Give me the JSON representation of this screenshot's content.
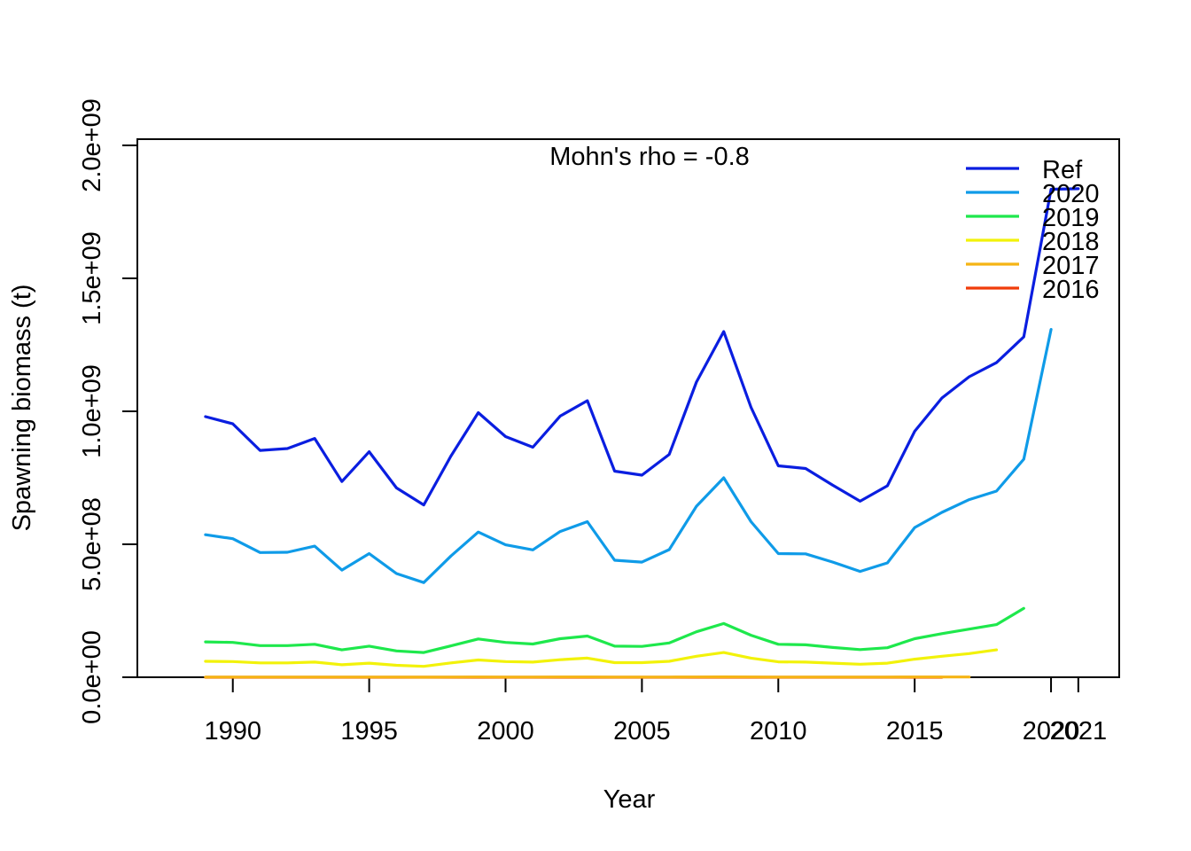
{
  "chart_data": {
    "type": "line",
    "annotation": "Mohn's rho = -0.8",
    "xlabel": "Year",
    "ylabel": "Spawning biomass (t)",
    "xlim": [
      1986.5,
      2022.5
    ],
    "ylim": [
      0,
      2000000000
    ],
    "x_ticks": [
      1990,
      1995,
      2000,
      2005,
      2010,
      2015,
      2020,
      2021
    ],
    "x_tick_labels": [
      "1990",
      "1995",
      "2000",
      "2005",
      "2010",
      "2015",
      "2020",
      "2021"
    ],
    "y_ticks": [
      0,
      500000000,
      1000000000,
      1500000000,
      2000000000
    ],
    "y_tick_labels": [
      "0.0e+00",
      "5.0e+08",
      "1.0e+09",
      "1.5e+09",
      "2.0e+09"
    ],
    "legend_position": "top-right",
    "series": [
      {
        "name": "Ref",
        "color": "#0a1ee0",
        "x": [
          1989,
          1990,
          1991,
          1992,
          1993,
          1994,
          1995,
          1996,
          1997,
          1998,
          1999,
          2000,
          2001,
          2002,
          2003,
          2004,
          2005,
          2006,
          2007,
          2008,
          2009,
          2010,
          2011,
          2012,
          2013,
          2014,
          2015,
          2016,
          2017,
          2018,
          2019,
          2020,
          2021
        ],
        "values": [
          980000000,
          953000000,
          853000000,
          860000000,
          898000000,
          736000000,
          848000000,
          712000000,
          648000000,
          832000000,
          995000000,
          905000000,
          865000000,
          982000000,
          1040000000,
          775000000,
          760000000,
          838000000,
          1110000000,
          1300000000,
          1015000000,
          795000000,
          785000000,
          722000000,
          662000000,
          720000000,
          925000000,
          1050000000,
          1130000000,
          1183000000,
          1280000000,
          1835000000,
          1837000000
        ]
      },
      {
        "name": "2020",
        "color": "#0f9be8",
        "x": [
          1989,
          1990,
          1991,
          1992,
          1993,
          1994,
          1995,
          1996,
          1997,
          1998,
          1999,
          2000,
          2001,
          2002,
          2003,
          2004,
          2005,
          2006,
          2007,
          2008,
          2009,
          2010,
          2011,
          2012,
          2013,
          2014,
          2015,
          2016,
          2017,
          2018,
          2019,
          2020
        ],
        "values": [
          536000000,
          521000000,
          469000000,
          470000000,
          493000000,
          403000000,
          465000000,
          390000000,
          356000000,
          456000000,
          546000000,
          498000000,
          479000000,
          548000000,
          585000000,
          440000000,
          433000000,
          480000000,
          643000000,
          750000000,
          585000000,
          465000000,
          464000000,
          433000000,
          398000000,
          430000000,
          563000000,
          620000000,
          668000000,
          700000000,
          820000000,
          1308000000
        ]
      },
      {
        "name": "2019",
        "color": "#1ee84c",
        "x": [
          1989,
          1990,
          1991,
          1992,
          1993,
          1994,
          1995,
          1996,
          1997,
          1998,
          1999,
          2000,
          2001,
          2002,
          2003,
          2004,
          2005,
          2006,
          2007,
          2008,
          2009,
          2010,
          2011,
          2012,
          2013,
          2014,
          2015,
          2016,
          2017,
          2018,
          2019
        ],
        "values": [
          133000000,
          131000000,
          119000000,
          119000000,
          124000000,
          103000000,
          117000000,
          99000000,
          93000000,
          118000000,
          144000000,
          131000000,
          125000000,
          145000000,
          155000000,
          117000000,
          116000000,
          129000000,
          171000000,
          202000000,
          158000000,
          124000000,
          122000000,
          112000000,
          104000000,
          111000000,
          145000000,
          164000000,
          181000000,
          198000000,
          259000000
        ]
      },
      {
        "name": "2018",
        "color": "#f2f20a",
        "x": [
          1989,
          1990,
          1991,
          1992,
          1993,
          1994,
          1995,
          1996,
          1997,
          1998,
          1999,
          2000,
          2001,
          2002,
          2003,
          2004,
          2005,
          2006,
          2007,
          2008,
          2009,
          2010,
          2011,
          2012,
          2013,
          2014,
          2015,
          2016,
          2017,
          2018
        ],
        "values": [
          60000000,
          59000000,
          54000000,
          54000000,
          57000000,
          47000000,
          53000000,
          45000000,
          41000000,
          54000000,
          65000000,
          59000000,
          57000000,
          66000000,
          72000000,
          55000000,
          55000000,
          60000000,
          79000000,
          93000000,
          72000000,
          58000000,
          57000000,
          53000000,
          49000000,
          53000000,
          68000000,
          79000000,
          89000000,
          103000000
        ]
      },
      {
        "name": "2017",
        "color": "#f5b414",
        "x": [
          1989,
          1990,
          1991,
          1992,
          1993,
          1994,
          1995,
          1996,
          1997,
          1998,
          1999,
          2000,
          2001,
          2002,
          2003,
          2004,
          2005,
          2006,
          2007,
          2008,
          2009,
          2010,
          2011,
          2012,
          2013,
          2014,
          2015,
          2016,
          2017
        ],
        "values": [
          800000,
          800000,
          700000,
          700000,
          800000,
          600000,
          700000,
          600000,
          500000,
          700000,
          900000,
          800000,
          800000,
          900000,
          1000000,
          700000,
          700000,
          800000,
          1100000,
          1300000,
          1000000,
          800000,
          800000,
          700000,
          600000,
          700000,
          900000,
          1000000,
          1100000
        ]
      },
      {
        "name": "2016",
        "color": "#f03c0a",
        "x": [
          1989,
          1990,
          1991,
          1992,
          1993,
          1994,
          1995,
          1996,
          1997,
          1998,
          1999,
          2000,
          2001,
          2002,
          2003,
          2004,
          2005,
          2006,
          2007,
          2008,
          2009,
          2010,
          2011,
          2012,
          2013,
          2014,
          2015,
          2016
        ],
        "values": [
          100000,
          100000,
          100000,
          100000,
          100000,
          100000,
          100000,
          100000,
          100000,
          100000,
          100000,
          100000,
          100000,
          100000,
          100000,
          100000,
          100000,
          100000,
          100000,
          100000,
          100000,
          100000,
          100000,
          100000,
          100000,
          100000,
          100000,
          100000
        ]
      }
    ]
  }
}
